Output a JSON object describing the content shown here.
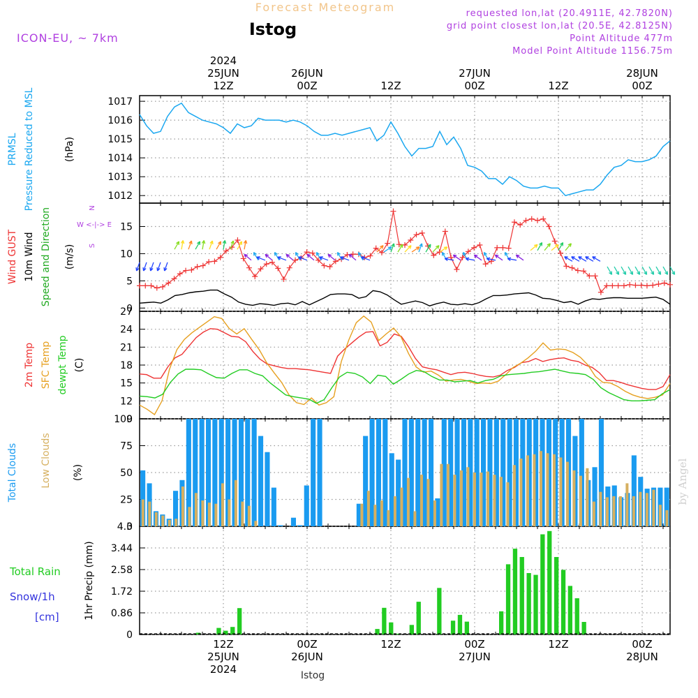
{
  "header": {
    "top_title": "Forecast Meteogram",
    "station": "Istog",
    "model": "ICON-EU, ~ 7km",
    "requested": "requested lon,lat (20.4911E, 42.7820N)",
    "grid": "grid point closest lon,lat (20.5E, 42.8125N)",
    "point_alt": "Point Altitude 477m",
    "model_alt": "Model Point Altitude 1156.75m",
    "footer_station": "Istog",
    "watermark": "by Angel"
  },
  "time_axis": {
    "top_labels": [
      {
        "lines": [
          "2024",
          "25JUN",
          "12Z"
        ],
        "hour": 12
      },
      {
        "lines": [
          "26JUN",
          "00Z"
        ],
        "hour": 24
      },
      {
        "lines": [
          "12Z"
        ],
        "hour": 36
      },
      {
        "lines": [
          "27JUN",
          "00Z"
        ],
        "hour": 48
      },
      {
        "lines": [
          "12Z"
        ],
        "hour": 60
      },
      {
        "lines": [
          "28JUN",
          "00Z"
        ],
        "hour": 72
      }
    ],
    "bottom_labels": [
      {
        "lines": [
          "12Z",
          "25JUN",
          "2024"
        ],
        "hour": 12
      },
      {
        "lines": [
          "00Z",
          "26JUN"
        ],
        "hour": 24
      },
      {
        "lines": [
          "12Z"
        ],
        "hour": 36
      },
      {
        "lines": [
          "00Z",
          "27JUN"
        ],
        "hour": 48
      },
      {
        "lines": [
          "12Z"
        ],
        "hour": 60
      },
      {
        "lines": [
          "00Z",
          "28JUN"
        ],
        "hour": 72
      }
    ]
  },
  "panel_labels": {
    "p1": [
      "PRMSL",
      "Pressure Reduced to MSL",
      "(hPa)"
    ],
    "p2": [
      "Wind GUST",
      "10m Wind",
      "Speed and Direction",
      "(m/s)"
    ],
    "compass": [
      "N",
      "W <-|-> E",
      "S"
    ],
    "p3": [
      "2m Temp",
      "SFC Temp",
      "dewpt Temp",
      "(C)"
    ],
    "p4": [
      "Total Clouds",
      "Low Clouds",
      "(%)"
    ],
    "p5": [
      "Total  Rain",
      "Snow/1h",
      "[cm]",
      "1hr Precip (mm)"
    ]
  },
  "colors": {
    "pressure": "#1aa7f0",
    "gust": "#ee3333",
    "wind": "#000000",
    "t2m": "#ee3333",
    "tsfc": "#e6a020",
    "dewpt": "#22cc22",
    "total_cloud": "#1a9bf0",
    "low_cloud": "#d6b060",
    "rain": "#22cc22",
    "label_purple": "#b040e0",
    "snow": "#3333dd"
  },
  "chart_data": [
    {
      "type": "line",
      "title": "PRMSL Pressure Reduced to MSL",
      "ylabel": "(hPa)",
      "ylim": [
        1011.6,
        1017.3
      ],
      "yticks": [
        1012,
        1013,
        1014,
        1015,
        1016,
        1017
      ],
      "x_start_hour": 0,
      "x_step_hours": 1,
      "x_end_hour": 76,
      "series": [
        {
          "name": "PRMSL",
          "values": [
            1016.3,
            1015.7,
            1015.3,
            1015.4,
            1016.2,
            1016.7,
            1016.9,
            1016.4,
            1016.2,
            1016.0,
            1015.9,
            1015.8,
            1015.6,
            1015.3,
            1015.8,
            1015.6,
            1015.7,
            1016.1,
            1016.0,
            1016.0,
            1016.0,
            1015.9,
            1016.0,
            1015.9,
            1015.7,
            1015.4,
            1015.2,
            1015.2,
            1015.3,
            1015.2,
            1015.3,
            1015.4,
            1015.5,
            1015.6,
            1014.9,
            1015.2,
            1015.9,
            1015.3,
            1014.6,
            1014.1,
            1014.5,
            1014.5,
            1014.6,
            1015.4,
            1014.7,
            1015.1,
            1014.5,
            1013.6,
            1013.5,
            1013.3,
            1012.9,
            1012.9,
            1012.6,
            1013.0,
            1012.8,
            1012.5,
            1012.4,
            1012.4,
            1012.5,
            1012.4,
            1012.4,
            1012.0,
            1012.1,
            1012.2,
            1012.3,
            1012.3,
            1012.6,
            1013.1,
            1013.5,
            1013.6,
            1013.9,
            1013.8,
            1013.8,
            1013.9,
            1014.1,
            1014.6,
            1014.9
          ]
        }
      ]
    },
    {
      "type": "line",
      "title": "Wind GUST / 10m Wind Speed and Direction",
      "ylabel": "(m/s)",
      "ylim": [
        -0.6,
        19.3
      ],
      "yticks": [
        0,
        5,
        10,
        15
      ],
      "x_start_hour": 0,
      "x_step_hours": 1,
      "x_end_hour": 76,
      "series": [
        {
          "name": "Wind GUST",
          "values": [
            4.1,
            4.1,
            4.1,
            3.7,
            3.9,
            4.6,
            5.4,
            6.3,
            6.9,
            7.0,
            7.6,
            7.8,
            8.5,
            8.6,
            9.3,
            10.5,
            11.2,
            12.5,
            9.1,
            7.4,
            5.8,
            7.2,
            8.1,
            8.4,
            7.3,
            5.3,
            7.4,
            8.8,
            9.2,
            10.3,
            10.1,
            8.8,
            7.8,
            7.6,
            8.6,
            9.0,
            9.8,
            9.9,
            9.9,
            9.3,
            9.6,
            11.0,
            10.2,
            11.9,
            17.8,
            11.7,
            11.6,
            12.5,
            13.5,
            13.8,
            11.4,
            9.7,
            10.3,
            14.1,
            9.3,
            7.1,
            9.3,
            10.4,
            11.1,
            11.6,
            8.1,
            8.6,
            11.1,
            11.1,
            11.0,
            15.8,
            15.3,
            16.1,
            16.4,
            16.1,
            16.4,
            15.0,
            12.3,
            10.1,
            7.7,
            7.4,
            6.9,
            6.8,
            5.9,
            5.9,
            2.9,
            4.1,
            4.1,
            4.1,
            4.1,
            4.3,
            4.2,
            4.2,
            4.1,
            4.2,
            4.4,
            4.6,
            4.3
          ],
          "x_step_hours_override": 0.8173
        },
        {
          "name": "10m Wind",
          "values": [
            0.9,
            1.0,
            1.1,
            0.9,
            1.5,
            2.3,
            2.5,
            2.8,
            3.0,
            3.1,
            3.3,
            3.3,
            2.6,
            2.0,
            1.1,
            0.7,
            0.5,
            0.8,
            0.7,
            0.5,
            0.8,
            0.9,
            0.6,
            1.2,
            0.6,
            1.2,
            1.8,
            2.5,
            2.6,
            2.6,
            2.5,
            1.8,
            2.1,
            3.2,
            3.0,
            2.4,
            1.5,
            0.7,
            1.0,
            1.3,
            1.0,
            0.4,
            0.8,
            1.1,
            0.7,
            0.6,
            0.8,
            0.6,
            1.0,
            1.7,
            2.3,
            2.3,
            2.4,
            2.6,
            2.7,
            2.8,
            2.4,
            1.8,
            1.7,
            1.4,
            1.0,
            1.2,
            0.7,
            1.3,
            1.7,
            1.6,
            1.8,
            1.9,
            1.9,
            1.8,
            1.8,
            1.8,
            1.9,
            2.0,
            1.6,
            0.7
          ]
        }
      ],
      "wind_barbs": "colored direction arrows plotted along 10m wind curve"
    },
    {
      "type": "line",
      "title": "2m Temp / SFC Temp / dewpt Temp",
      "ylabel": "(C)",
      "ylim": [
        9,
        27
      ],
      "yticks": [
        9,
        12,
        15,
        18,
        21,
        24,
        27
      ],
      "x_start_hour": 0,
      "x_step_hours": 1,
      "x_end_hour": 76,
      "series": [
        {
          "name": "2m Temp",
          "values": [
            16.5,
            16.4,
            15.8,
            15.8,
            17.7,
            19.2,
            19.8,
            21.2,
            22.6,
            23.5,
            24.1,
            24.0,
            23.4,
            22.8,
            22.7,
            21.9,
            20.3,
            19.0,
            18.2,
            17.9,
            17.6,
            17.4,
            17.4,
            17.3,
            17.2,
            17.0,
            16.8,
            16.6,
            19.5,
            20.7,
            21.7,
            22.7,
            23.5,
            23.6,
            21.2,
            21.8,
            23.2,
            22.8,
            21.1,
            19.1,
            17.7,
            17.4,
            17.2,
            16.8,
            16.4,
            16.7,
            16.8,
            16.6,
            16.3,
            16.1,
            16.0,
            16.3,
            17.1,
            17.6,
            18.4,
            18.6,
            19.1,
            18.6,
            18.9,
            19.1,
            19.2,
            18.8,
            18.6,
            18.0,
            17.6,
            16.7,
            15.4,
            15.4,
            15.1,
            14.7,
            14.4,
            14.1,
            13.9,
            13.9,
            14.4,
            16.4
          ]
        },
        {
          "name": "SFC Temp",
          "values": [
            11.3,
            10.6,
            9.7,
            12.0,
            17.3,
            20.6,
            22.3,
            23.4,
            24.3,
            25.2,
            26.1,
            25.8,
            24.1,
            23.2,
            24.1,
            22.3,
            20.6,
            18.4,
            16.7,
            15.1,
            13.0,
            11.7,
            11.4,
            12.5,
            11.3,
            11.7,
            12.7,
            18.6,
            22.2,
            25.1,
            26.2,
            25.2,
            22.1,
            23.2,
            24.2,
            22.7,
            19.9,
            17.7,
            16.8,
            17.0,
            16.3,
            15.3,
            15.5,
            15.6,
            15.3,
            14.9,
            15.0,
            14.9,
            15.3,
            16.4,
            17.6,
            18.3,
            19.2,
            20.3,
            21.7,
            20.5,
            20.7,
            20.6,
            20.1,
            19.3,
            18.0,
            16.1,
            15.1,
            15.0,
            14.4,
            13.6,
            13.0,
            12.6,
            12.4,
            12.6,
            13.0,
            14.9
          ]
        },
        {
          "name": "dewpt Temp",
          "values": [
            12.8,
            12.7,
            12.5,
            13.1,
            15.1,
            16.5,
            17.3,
            17.3,
            17.2,
            16.5,
            15.9,
            15.8,
            16.6,
            17.2,
            17.2,
            16.6,
            16.2,
            15.0,
            14.0,
            13.0,
            12.7,
            12.5,
            12.3,
            11.6,
            12.2,
            14.2,
            16.0,
            16.8,
            16.6,
            16.0,
            14.9,
            16.3,
            16.1,
            14.8,
            15.6,
            16.5,
            17.1,
            16.9,
            16.1,
            15.5,
            15.5,
            15.2,
            15.3,
            15.4,
            15.0,
            15.4,
            15.6,
            16.2,
            16.4,
            16.5,
            16.6,
            16.8,
            16.9,
            17.1,
            17.3,
            17.0,
            16.7,
            16.6,
            16.4,
            15.6,
            14.2,
            13.4,
            12.8,
            12.2,
            12.0,
            12.0,
            12.1,
            12.2,
            13.2,
            13.9
          ]
        }
      ]
    },
    {
      "type": "bar",
      "title": "Total Clouds / Low Clouds",
      "ylabel": "(%)",
      "ylim": [
        0,
        100
      ],
      "yticks": [
        0,
        25,
        50,
        75,
        100
      ],
      "x_start_hour": 0,
      "x_step_hours": 1,
      "x_end_hour": 76,
      "series": [
        {
          "name": "Total Clouds",
          "values": [
            52,
            40,
            14,
            11,
            7,
            33,
            43,
            100,
            100,
            100,
            100,
            100,
            100,
            100,
            100,
            100,
            100,
            100,
            84,
            69,
            36,
            1,
            0,
            8,
            1,
            38,
            100,
            100,
            0,
            0,
            0,
            0,
            0,
            21,
            84,
            100,
            100,
            100,
            68,
            62,
            100,
            100,
            100,
            100,
            100,
            26,
            100,
            100,
            100,
            100,
            100,
            100,
            100,
            100,
            100,
            100,
            100,
            100,
            100,
            100,
            100,
            100,
            100,
            100,
            100,
            100,
            84,
            100,
            43,
            55,
            100,
            37,
            38,
            27,
            31,
            66,
            46,
            35,
            36,
            36,
            36
          ]
        },
        {
          "name": "Low Clouds",
          "values": [
            25,
            23,
            13,
            10,
            6,
            7,
            37,
            18,
            31,
            24,
            22,
            21,
            40,
            25,
            43,
            23,
            19,
            5,
            0,
            0,
            0,
            0,
            0,
            0,
            0,
            0,
            0,
            0,
            0,
            0,
            0,
            0,
            0,
            21,
            33,
            20,
            24,
            15,
            28,
            36,
            45,
            14,
            48,
            44,
            24,
            58,
            58,
            48,
            52,
            55,
            50,
            50,
            51,
            48,
            46,
            41,
            57,
            63,
            66,
            67,
            70,
            68,
            67,
            64,
            60,
            52,
            47,
            54,
            23,
            32,
            27,
            28,
            28,
            40,
            28,
            32,
            31,
            34,
            20,
            15
          ]
        }
      ]
    },
    {
      "type": "bar",
      "title": "Total Rain / Snow/1h [cm]",
      "ylabel": "1hr Precip (mm)",
      "ylim": [
        0,
        4.3
      ],
      "yticks": [
        0,
        0.86,
        1.72,
        2.58,
        3.44,
        4.3
      ],
      "ytick_labels": [
        "0",
        "0.86",
        "1.72",
        "2.58",
        "3.44",
        "4.3"
      ],
      "x_start_hour": 0,
      "x_step_hours": 1,
      "x_end_hour": 76,
      "series": [
        {
          "name": "Total Rain",
          "values": [
            0,
            0,
            0,
            0,
            0,
            0,
            0,
            0,
            0.07,
            0,
            0,
            0.26,
            0.15,
            0.3,
            1.05,
            0,
            0,
            0,
            0,
            0,
            0,
            0,
            0,
            0,
            0,
            0,
            0,
            0,
            0,
            0,
            0,
            0,
            0,
            0,
            0.22,
            1.06,
            0.48,
            0.03,
            0,
            0.38,
            1.3,
            0,
            0,
            1.85,
            0,
            0.55,
            0.78,
            0.51,
            0,
            0,
            0,
            0,
            0.92,
            2.79,
            3.41,
            3.08,
            2.44,
            2.37,
            3.98,
            4.11,
            3.08,
            2.57,
            1.93,
            1.44,
            0.5,
            0,
            0,
            0,
            0,
            0,
            0,
            0,
            0,
            0,
            0,
            0,
            0
          ]
        }
      ]
    }
  ]
}
